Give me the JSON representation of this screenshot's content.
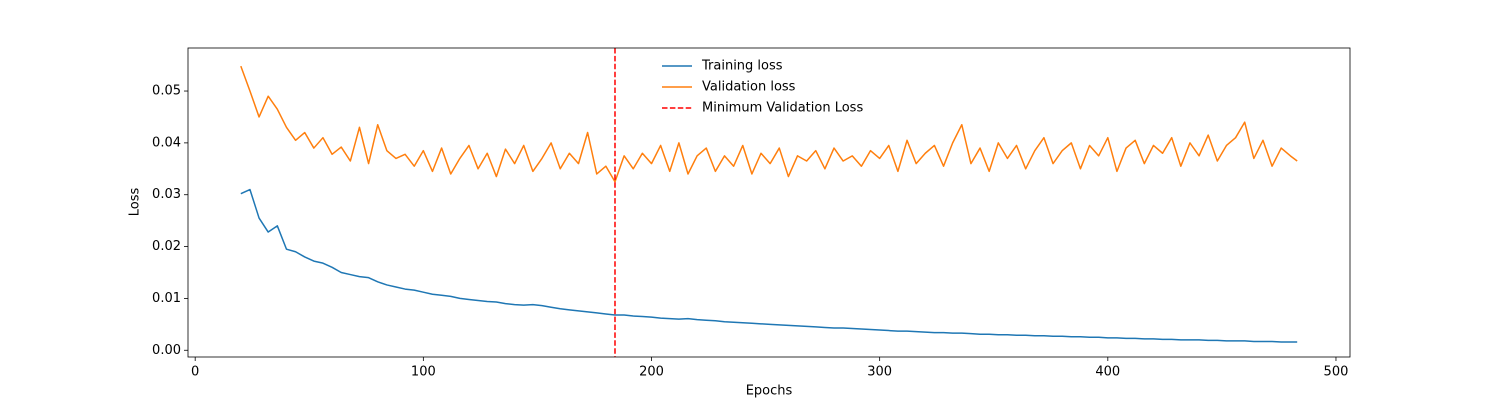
{
  "chart_data": {
    "type": "line",
    "xlabel": "Epochs",
    "ylabel": "Loss",
    "x": [
      20,
      24,
      28,
      32,
      36,
      40,
      44,
      48,
      52,
      56,
      60,
      64,
      68,
      72,
      76,
      80,
      84,
      88,
      92,
      96,
      100,
      104,
      108,
      112,
      116,
      120,
      124,
      128,
      132,
      136,
      140,
      144,
      148,
      152,
      156,
      160,
      164,
      168,
      172,
      176,
      180,
      184,
      188,
      192,
      196,
      200,
      204,
      208,
      212,
      216,
      220,
      224,
      228,
      232,
      236,
      240,
      244,
      248,
      252,
      256,
      260,
      264,
      268,
      272,
      276,
      280,
      284,
      288,
      292,
      296,
      300,
      304,
      308,
      312,
      316,
      320,
      324,
      328,
      332,
      336,
      340,
      344,
      348,
      352,
      356,
      360,
      364,
      368,
      372,
      376,
      380,
      384,
      388,
      392,
      396,
      400,
      404,
      408,
      412,
      416,
      420,
      424,
      428,
      432,
      436,
      440,
      444,
      448,
      452,
      456,
      460,
      464,
      468,
      472,
      476,
      480,
      483
    ],
    "series": [
      {
        "name": "Training loss",
        "color": "#1f77b4",
        "values": [
          0.0302,
          0.031,
          0.0255,
          0.0228,
          0.024,
          0.0195,
          0.019,
          0.018,
          0.0172,
          0.0168,
          0.016,
          0.015,
          0.0146,
          0.0142,
          0.014,
          0.0132,
          0.0126,
          0.0122,
          0.0118,
          0.0116,
          0.0112,
          0.0108,
          0.0106,
          0.0104,
          0.01,
          0.0098,
          0.0096,
          0.0094,
          0.0093,
          0.009,
          0.0088,
          0.0087,
          0.0088,
          0.0086,
          0.0083,
          0.008,
          0.0078,
          0.0076,
          0.0074,
          0.0072,
          0.007,
          0.0068,
          0.0068,
          0.0066,
          0.0065,
          0.0064,
          0.0062,
          0.0061,
          0.006,
          0.0061,
          0.0059,
          0.0058,
          0.0057,
          0.0055,
          0.0054,
          0.0053,
          0.0052,
          0.0051,
          0.005,
          0.0049,
          0.0048,
          0.0047,
          0.0046,
          0.0045,
          0.0044,
          0.0043,
          0.0043,
          0.0042,
          0.0041,
          0.004,
          0.0039,
          0.0038,
          0.0037,
          0.0037,
          0.0036,
          0.0035,
          0.0034,
          0.0034,
          0.0033,
          0.0033,
          0.0032,
          0.0031,
          0.0031,
          0.003,
          0.003,
          0.0029,
          0.0029,
          0.0028,
          0.0028,
          0.0027,
          0.0027,
          0.0026,
          0.0026,
          0.0025,
          0.0025,
          0.0024,
          0.0024,
          0.0023,
          0.0023,
          0.0022,
          0.0022,
          0.0021,
          0.0021,
          0.002,
          0.002,
          0.002,
          0.0019,
          0.0019,
          0.0018,
          0.0018,
          0.0018,
          0.0017,
          0.0017,
          0.0017,
          0.0016,
          0.0016,
          0.0016
        ]
      },
      {
        "name": "Validation loss",
        "color": "#ff7f0e",
        "values": [
          0.0548,
          0.05,
          0.045,
          0.049,
          0.0465,
          0.043,
          0.0405,
          0.042,
          0.039,
          0.041,
          0.0378,
          0.0392,
          0.0365,
          0.043,
          0.036,
          0.0435,
          0.0385,
          0.037,
          0.0378,
          0.0355,
          0.0385,
          0.0345,
          0.039,
          0.034,
          0.037,
          0.0395,
          0.035,
          0.038,
          0.0335,
          0.0388,
          0.036,
          0.0395,
          0.0345,
          0.037,
          0.04,
          0.035,
          0.038,
          0.036,
          0.042,
          0.034,
          0.0355,
          0.0325,
          0.0375,
          0.035,
          0.038,
          0.036,
          0.0395,
          0.0345,
          0.04,
          0.034,
          0.0375,
          0.039,
          0.0345,
          0.0375,
          0.0355,
          0.0395,
          0.034,
          0.038,
          0.036,
          0.039,
          0.0335,
          0.0375,
          0.0365,
          0.0385,
          0.035,
          0.039,
          0.0365,
          0.0375,
          0.0355,
          0.0385,
          0.037,
          0.0395,
          0.0345,
          0.0405,
          0.036,
          0.038,
          0.0395,
          0.0355,
          0.04,
          0.0435,
          0.036,
          0.039,
          0.0345,
          0.04,
          0.037,
          0.0395,
          0.035,
          0.0385,
          0.041,
          0.036,
          0.0385,
          0.04,
          0.035,
          0.0395,
          0.0375,
          0.041,
          0.0345,
          0.039,
          0.0405,
          0.036,
          0.0395,
          0.038,
          0.041,
          0.0355,
          0.04,
          0.0375,
          0.0415,
          0.0365,
          0.0395,
          0.041,
          0.044,
          0.037,
          0.0405,
          0.0355,
          0.039,
          0.0375,
          0.0365
        ]
      }
    ],
    "vlines": [
      {
        "name": "Minimum Validation Loss",
        "x": 184,
        "color": "#ff0000",
        "dashed": true
      }
    ],
    "xlim": [
      -3.15,
      506.15
    ],
    "xticks": [
      0,
      100,
      200,
      300,
      400,
      500
    ],
    "ylim": [
      -0.0013,
      0.0583
    ],
    "yticks": [
      {
        "value": 0,
        "label": "0.00"
      },
      0.01,
      0.02,
      0.03,
      0.04,
      0.05
    ],
    "legend_loc": "upper center",
    "grid": false
  }
}
